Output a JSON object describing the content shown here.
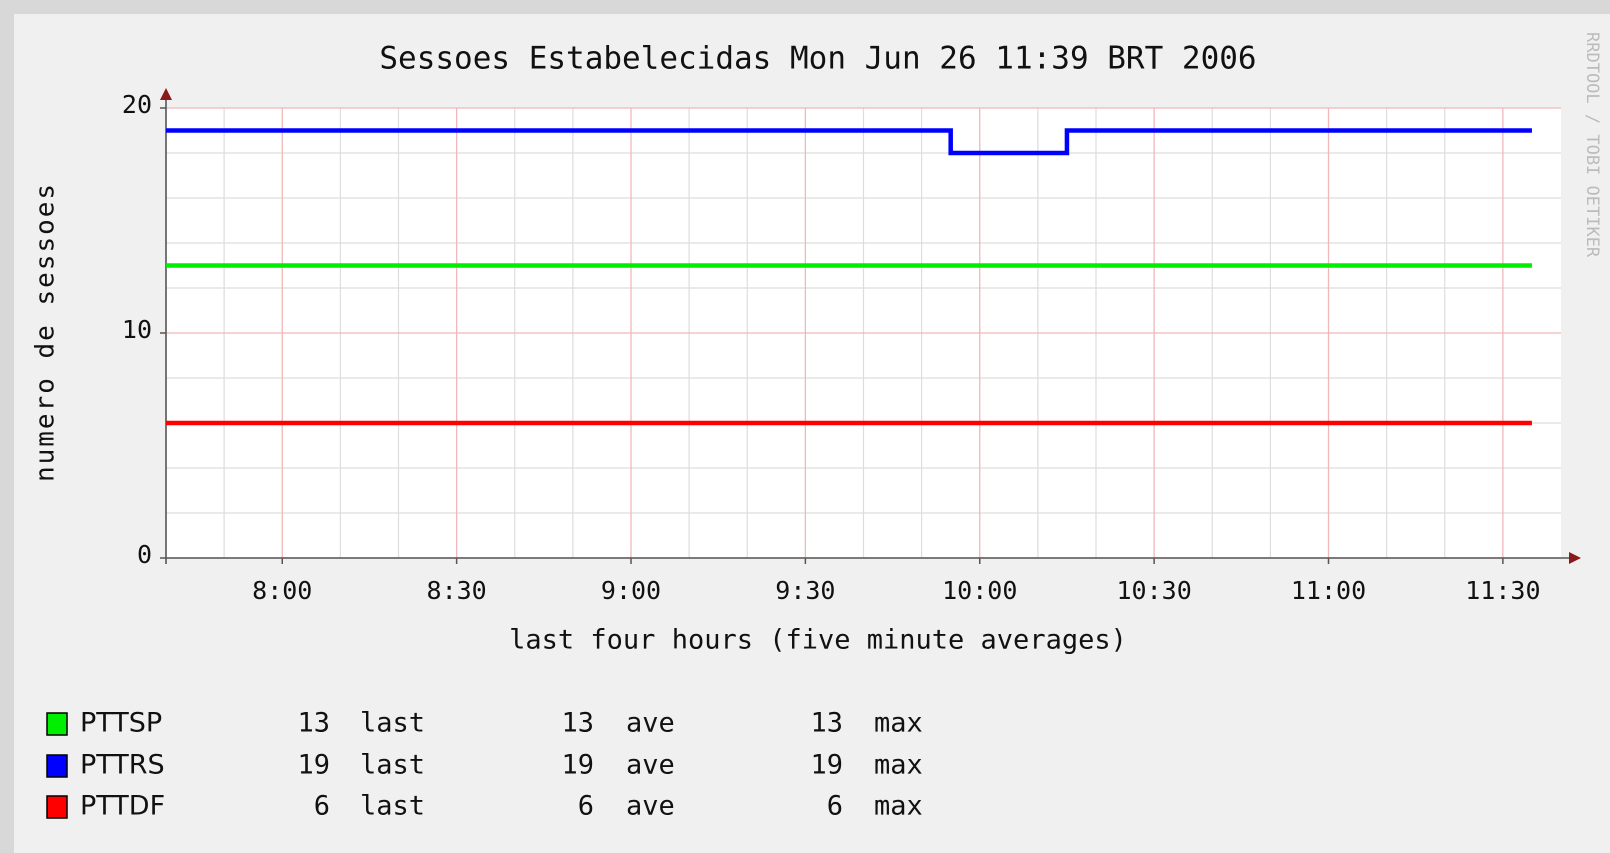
{
  "chart_data": {
    "type": "line",
    "title": "Sessoes Estabelecidas  Mon Jun 26 11:39 BRT 2006",
    "y_label": "numero de sessoes",
    "x_label": "last four hours (five minute averages)",
    "watermark": "RRDTOOL / TOBI OETIKER",
    "xlim": [
      460,
      700
    ],
    "xticks": [
      {
        "value": 480,
        "label": "8:00"
      },
      {
        "value": 510,
        "label": "8:30"
      },
      {
        "value": 540,
        "label": "9:00"
      },
      {
        "value": 570,
        "label": "9:30"
      },
      {
        "value": 600,
        "label": "10:00"
      },
      {
        "value": 630,
        "label": "10:30"
      },
      {
        "value": 660,
        "label": "11:00"
      },
      {
        "value": 690,
        "label": "11:30"
      }
    ],
    "xminorticks": [
      470,
      490,
      500,
      520,
      530,
      550,
      560,
      580,
      590,
      610,
      620,
      640,
      650,
      670,
      680
    ],
    "ylim": [
      0,
      20
    ],
    "yticks": [
      0,
      10,
      20
    ],
    "yminorticks": [
      2,
      4,
      6,
      8,
      12,
      14,
      16,
      18
    ],
    "grid": true,
    "legend_stats": [
      "last",
      "ave",
      "max"
    ],
    "series": [
      {
        "name": "PTTSP",
        "color": "#00ee00",
        "x": [
          460,
          695
        ],
        "values": [
          13,
          13
        ],
        "last": 13,
        "ave": 13,
        "max": 13
      },
      {
        "name": "PTTRS",
        "color": "#0000ff",
        "x": [
          460,
          595,
          595,
          615,
          615,
          695
        ],
        "values": [
          19,
          19,
          18,
          18,
          19,
          19
        ],
        "last": 19,
        "ave": 19,
        "max": 19
      },
      {
        "name": "PTTDF",
        "color": "#ff0000",
        "x": [
          460,
          695
        ],
        "values": [
          6,
          6
        ],
        "last": 6,
        "ave": 6,
        "max": 6
      }
    ]
  }
}
